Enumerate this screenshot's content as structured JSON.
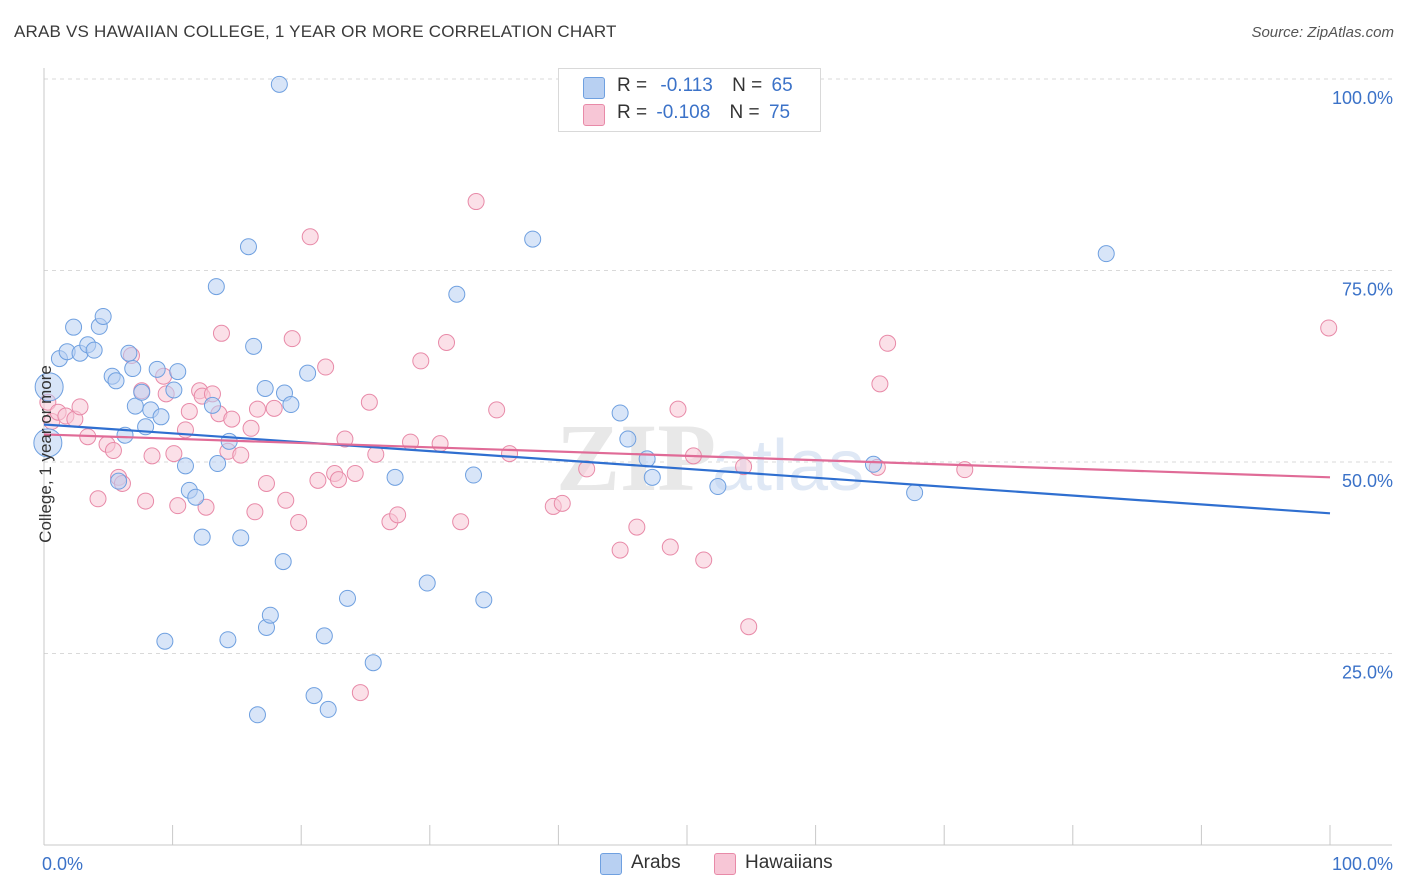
{
  "title": "ARAB VS HAWAIIAN COLLEGE, 1 YEAR OR MORE CORRELATION CHART",
  "source": "Source: ZipAtlas.com",
  "colors": {
    "arabs": "#6fa0e0",
    "arabs_fill": "#b8d0f2",
    "hawaiians": "#e88aa8",
    "hawaiians_fill": "#f7c6d6",
    "arabs_line": "#2f6fd0",
    "hawaiians_line": "#e06b97",
    "tick_label": "#3b72c8"
  },
  "legend": {
    "arabs": {
      "r_label": "R =",
      "r_value": "-0.113",
      "n_label": "N =",
      "n_value": "65"
    },
    "hawaiians": {
      "r_label": "R =",
      "r_value": "-0.108",
      "n_label": "N =",
      "n_value": "75"
    }
  },
  "bottom_legend": {
    "arabs": "Arabs",
    "hawaiians": "Hawaiians"
  },
  "chart_data": {
    "type": "scatter",
    "xlabel": "",
    "ylabel": "College, 1 year or more",
    "x_tick_labels": [
      "0.0%",
      "100.0%"
    ],
    "y_tick_labels": [
      "100.0%",
      "75.0%",
      "50.0%",
      "25.0%"
    ],
    "xlim": [
      0,
      100
    ],
    "ylim": [
      0,
      100
    ],
    "grid": true,
    "legend_position": "top-center",
    "watermark": "ZIPatlas",
    "series": [
      {
        "name": "Arabs",
        "trend": {
          "start": [
            0,
            54.9
          ],
          "end": [
            100,
            43.3
          ]
        },
        "points": [
          [
            0.4,
            59.8
          ],
          [
            0.3,
            52.5
          ],
          [
            1.2,
            63.5
          ],
          [
            1.8,
            64.4
          ],
          [
            2.3,
            67.6
          ],
          [
            2.8,
            64.2
          ],
          [
            3.4,
            65.3
          ],
          [
            3.9,
            64.6
          ],
          [
            4.3,
            67.7
          ],
          [
            4.6,
            69.0
          ],
          [
            5.3,
            61.2
          ],
          [
            5.6,
            60.6
          ],
          [
            6.3,
            53.5
          ],
          [
            6.6,
            64.2
          ],
          [
            6.9,
            62.2
          ],
          [
            7.1,
            57.3
          ],
          [
            7.6,
            59.1
          ],
          [
            7.9,
            54.6
          ],
          [
            8.3,
            56.8
          ],
          [
            8.8,
            62.1
          ],
          [
            9.1,
            55.9
          ],
          [
            10.1,
            59.4
          ],
          [
            10.4,
            61.8
          ],
          [
            11.0,
            49.5
          ],
          [
            11.3,
            46.3
          ],
          [
            11.8,
            45.4
          ],
          [
            12.3,
            40.2
          ],
          [
            13.1,
            57.4
          ],
          [
            13.5,
            49.8
          ],
          [
            13.4,
            72.9
          ],
          [
            14.4,
            52.7
          ],
          [
            15.3,
            40.1
          ],
          [
            15.9,
            78.1
          ],
          [
            16.3,
            65.1
          ],
          [
            16.6,
            17.0
          ],
          [
            17.3,
            28.4
          ],
          [
            17.6,
            30.0
          ],
          [
            18.6,
            37.0
          ],
          [
            18.7,
            59.0
          ],
          [
            19.2,
            57.5
          ],
          [
            18.3,
            99.3
          ],
          [
            20.5,
            61.6
          ],
          [
            21.0,
            19.5
          ],
          [
            21.8,
            27.3
          ],
          [
            22.1,
            17.7
          ],
          [
            23.6,
            32.2
          ],
          [
            25.6,
            23.8
          ],
          [
            27.3,
            48.0
          ],
          [
            29.8,
            34.2
          ],
          [
            32.1,
            71.9
          ],
          [
            33.4,
            48.3
          ],
          [
            34.2,
            32.0
          ],
          [
            38.0,
            79.1
          ],
          [
            44.8,
            56.4
          ],
          [
            45.4,
            53.0
          ],
          [
            46.9,
            50.4
          ],
          [
            47.3,
            48.0
          ],
          [
            52.4,
            46.8
          ],
          [
            64.5,
            49.7
          ],
          [
            67.7,
            46.0
          ],
          [
            82.6,
            77.2
          ],
          [
            9.4,
            26.6
          ],
          [
            14.3,
            26.8
          ],
          [
            17.2,
            59.6
          ],
          [
            5.8,
            47.5
          ]
        ]
      },
      {
        "name": "Hawaiians",
        "trend": {
          "start": [
            0,
            53.6
          ],
          "end": [
            100,
            48.0
          ]
        },
        "points": [
          [
            0.3,
            57.8
          ],
          [
            0.6,
            55.3
          ],
          [
            1.1,
            56.5
          ],
          [
            1.7,
            56.0
          ],
          [
            2.4,
            55.6
          ],
          [
            2.8,
            57.2
          ],
          [
            3.4,
            53.3
          ],
          [
            4.2,
            45.2
          ],
          [
            4.9,
            52.3
          ],
          [
            5.4,
            51.5
          ],
          [
            5.8,
            48.0
          ],
          [
            6.1,
            47.2
          ],
          [
            6.8,
            63.9
          ],
          [
            7.6,
            59.3
          ],
          [
            7.9,
            44.9
          ],
          [
            8.4,
            50.8
          ],
          [
            9.3,
            61.2
          ],
          [
            9.5,
            58.9
          ],
          [
            10.1,
            51.1
          ],
          [
            10.4,
            44.3
          ],
          [
            11.0,
            54.2
          ],
          [
            11.3,
            56.6
          ],
          [
            12.1,
            59.3
          ],
          [
            12.3,
            58.6
          ],
          [
            12.6,
            44.1
          ],
          [
            13.1,
            58.9
          ],
          [
            13.6,
            56.3
          ],
          [
            13.8,
            66.8
          ],
          [
            14.3,
            51.4
          ],
          [
            14.6,
            55.6
          ],
          [
            15.3,
            50.9
          ],
          [
            16.1,
            54.4
          ],
          [
            16.4,
            43.5
          ],
          [
            16.6,
            56.9
          ],
          [
            17.3,
            47.2
          ],
          [
            17.9,
            57.0
          ],
          [
            18.8,
            45.0
          ],
          [
            19.3,
            66.1
          ],
          [
            19.8,
            42.1
          ],
          [
            20.7,
            79.4
          ],
          [
            21.3,
            47.6
          ],
          [
            21.9,
            62.4
          ],
          [
            22.6,
            48.5
          ],
          [
            22.9,
            47.7
          ],
          [
            23.4,
            53.0
          ],
          [
            24.2,
            48.5
          ],
          [
            24.6,
            19.9
          ],
          [
            25.3,
            57.8
          ],
          [
            25.8,
            51.0
          ],
          [
            26.9,
            42.2
          ],
          [
            27.5,
            43.1
          ],
          [
            28.5,
            52.6
          ],
          [
            29.3,
            63.2
          ],
          [
            30.8,
            52.4
          ],
          [
            31.3,
            65.6
          ],
          [
            32.4,
            42.2
          ],
          [
            33.6,
            84.0
          ],
          [
            35.2,
            56.8
          ],
          [
            36.2,
            51.1
          ],
          [
            39.6,
            44.2
          ],
          [
            40.3,
            44.6
          ],
          [
            42.2,
            49.1
          ],
          [
            44.8,
            38.5
          ],
          [
            46.1,
            41.5
          ],
          [
            48.7,
            38.9
          ],
          [
            49.3,
            56.9
          ],
          [
            50.5,
            50.8
          ],
          [
            51.3,
            37.2
          ],
          [
            54.4,
            49.4
          ],
          [
            54.8,
            28.5
          ],
          [
            64.8,
            49.3
          ],
          [
            65.0,
            60.2
          ],
          [
            65.6,
            65.5
          ],
          [
            71.6,
            49.0
          ],
          [
            99.9,
            67.5
          ]
        ]
      }
    ]
  }
}
